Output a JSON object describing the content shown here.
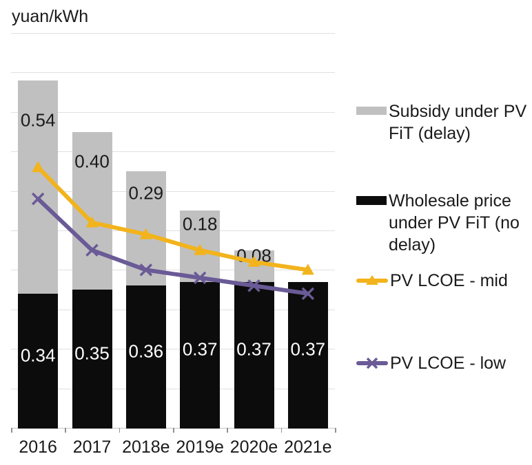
{
  "chart_data": {
    "type": "bar",
    "subtype": "stacked-column-with-lines",
    "title": "yuan/kWh",
    "ylabel": "yuan/kWh",
    "categories": [
      "2016",
      "2017",
      "2018e",
      "2019e",
      "2020e",
      "2021e"
    ],
    "series": [
      {
        "name": "Wholesale price under PV FiT (no delay)",
        "type": "bar",
        "color": "#0c0c0c",
        "values": [
          0.34,
          0.35,
          0.36,
          0.37,
          0.37,
          0.37
        ],
        "data_labels": [
          "0.34",
          "0.35",
          "0.36",
          "0.37",
          "0.37",
          "0.37"
        ],
        "label_color": "#ffffff"
      },
      {
        "name": "Subsidy under PV FiT (delay)",
        "type": "bar",
        "color": "#c0c0c0",
        "values": [
          0.54,
          0.4,
          0.29,
          0.18,
          0.08,
          0
        ],
        "data_labels": [
          "0.54",
          "0.40",
          "0.29",
          "0.18",
          "0.08",
          ""
        ],
        "label_color": "#1a1a1a"
      },
      {
        "name": "PV LCOE - mid",
        "type": "line",
        "marker": "triangle",
        "color": "#f2b31c",
        "values": [
          0.66,
          0.52,
          0.49,
          0.45,
          0.42,
          0.4
        ]
      },
      {
        "name": "PV LCOE - low",
        "type": "line",
        "marker": "x",
        "color": "#6a5a96",
        "values": [
          0.58,
          0.45,
          0.4,
          0.38,
          0.36,
          0.34
        ]
      }
    ],
    "ylim": [
      0,
      1.0
    ],
    "gridline_step": 0.1,
    "grid": "horizontal",
    "legend_position": "right"
  },
  "legend": {
    "items": [
      {
        "label": "Subsidy under PV FiT (delay)",
        "swatch": "gray-bar",
        "color": "#c0c0c0"
      },
      {
        "label": "Wholesale price under PV FiT (no delay)",
        "swatch": "black-bar",
        "color": "#0c0c0c"
      },
      {
        "label": "PV LCOE - mid",
        "swatch": "yellow-line-triangle",
        "color": "#f2b31c"
      },
      {
        "label": "PV LCOE - low",
        "swatch": "purple-line-x",
        "color": "#6a5a96"
      }
    ]
  }
}
